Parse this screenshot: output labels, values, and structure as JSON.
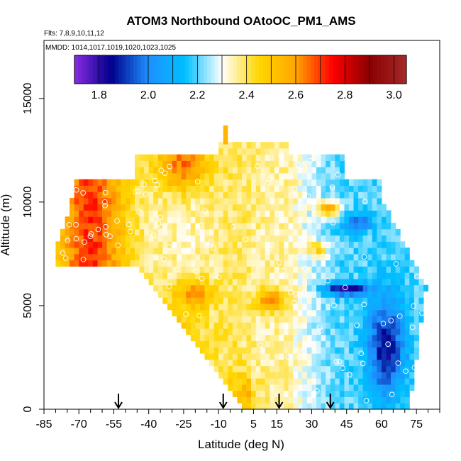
{
  "chart_data": {
    "type": "heatmap",
    "title": "ATOM3 Northbound OAtoOC_PM1_AMS",
    "flights_label": "Flts: 7,8,9,10,11,12",
    "dates_label": "MMDD: 1014,1017,1019,1020,1023,1025",
    "xlabel": "Latitude (deg N)",
    "ylabel": "Altitude (m)",
    "xlim": [
      -85,
      85
    ],
    "ylim": [
      0,
      17800
    ],
    "x_ticks": [
      "-85",
      "-70",
      "-55",
      "-40",
      "-25",
      "-10",
      "5",
      "15",
      "30",
      "45",
      "60",
      "75"
    ],
    "x_tick_values": [
      -85,
      -70,
      -55,
      -40,
      -25,
      -10,
      5,
      15,
      30,
      45,
      60,
      75
    ],
    "y_ticks": [
      "0",
      "5000",
      "10000",
      "15000"
    ],
    "y_tick_values": [
      0,
      5000,
      10000,
      15000
    ],
    "colorbar": {
      "min": 1.7,
      "max": 3.05,
      "ticks": [
        "1.8",
        "2.0",
        "2.2",
        "2.4",
        "2.6",
        "2.8",
        "3.0"
      ],
      "tick_values": [
        1.8,
        2.0,
        2.2,
        2.4,
        2.6,
        2.8,
        3.0
      ],
      "colors": [
        "#8a2be2",
        "#00008b",
        "#1e90ff",
        "#00bfff",
        "#ffffff",
        "#ffd700",
        "#ffa500",
        "#ff0000",
        "#8b0000",
        "#a52a2a"
      ]
    },
    "arrows_latitude": [
      -53,
      -8,
      16,
      38
    ],
    "grid": false
  }
}
